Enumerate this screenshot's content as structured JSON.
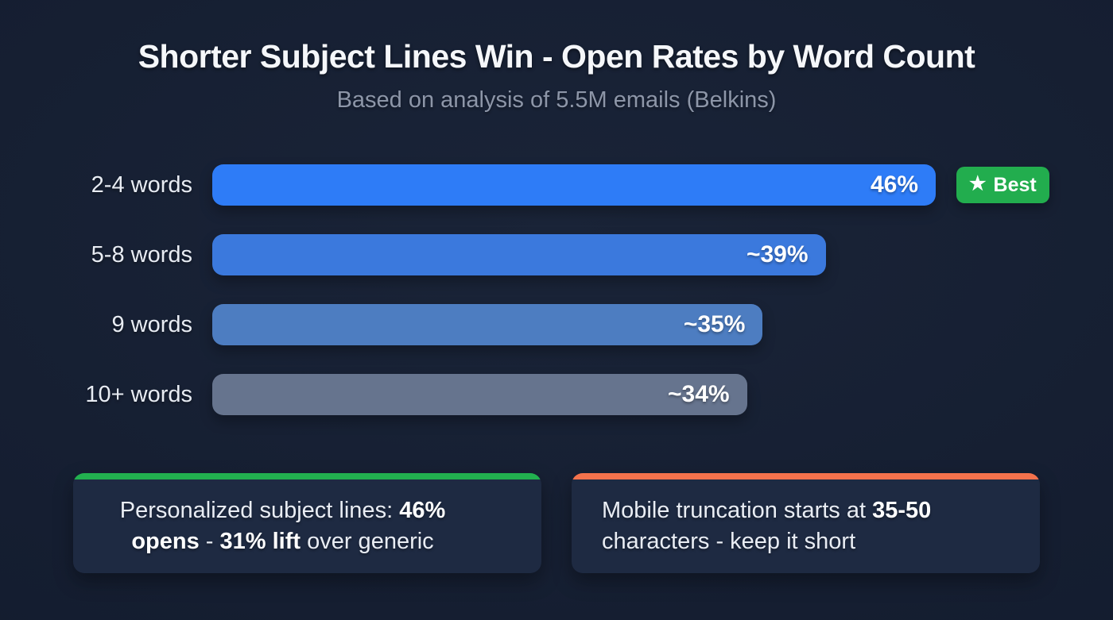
{
  "title": "Shorter Subject Lines Win - Open Rates by Word Count",
  "subtitle": "Based on analysis of 5.5M emails (Belkins)",
  "chart_data": {
    "type": "bar",
    "orientation": "horizontal",
    "title": "Shorter Subject Lines Win - Open Rates by Word Count",
    "subtitle": "Based on analysis of 5.5M emails (Belkins)",
    "categories": [
      "2-4 words",
      "5-8 words",
      "9 words",
      "10+ words"
    ],
    "values": [
      46,
      39,
      35,
      34
    ],
    "value_labels": [
      "46%",
      "~39%",
      "~35%",
      "~34%"
    ],
    "bar_colors": [
      "#2e7cf7",
      "#3b79dd",
      "#4d7dc1",
      "#66748e"
    ],
    "xlim": [
      0,
      46
    ],
    "grid": false,
    "legend": "none",
    "annotations": [
      {
        "row_index": 0,
        "label": "Best",
        "icon": "star",
        "color": "#22ad4e"
      }
    ]
  },
  "best_badge": {
    "label": "Best",
    "icon": "star",
    "color": "#22ad4e"
  },
  "callouts": [
    {
      "accent_color": "#22b04f",
      "align": "center",
      "segments": [
        {
          "text": "Personalized subject lines: ",
          "bold": false
        },
        {
          "text": "46% opens",
          "bold": true
        },
        {
          "text": " - ",
          "bold": false
        },
        {
          "text": "31% lift",
          "bold": true
        },
        {
          "text": " over generic",
          "bold": false
        }
      ]
    },
    {
      "accent_color": "#f4724c",
      "align": "left",
      "segments": [
        {
          "text": "Mobile truncation starts at ",
          "bold": false
        },
        {
          "text": "35-50",
          "bold": true
        },
        {
          "text": " characters - keep it short",
          "bold": false
        }
      ]
    }
  ],
  "colors": {
    "background": "#151e31",
    "card_background": "#1e2a42",
    "title_text": "#f5f7fa",
    "subtitle_text": "#8d96a8",
    "label_text": "#e8ecf3",
    "value_text": "#ffffff",
    "badge_green": "#22ad4e",
    "accent_green": "#22b04f",
    "accent_orange": "#f4724c"
  }
}
